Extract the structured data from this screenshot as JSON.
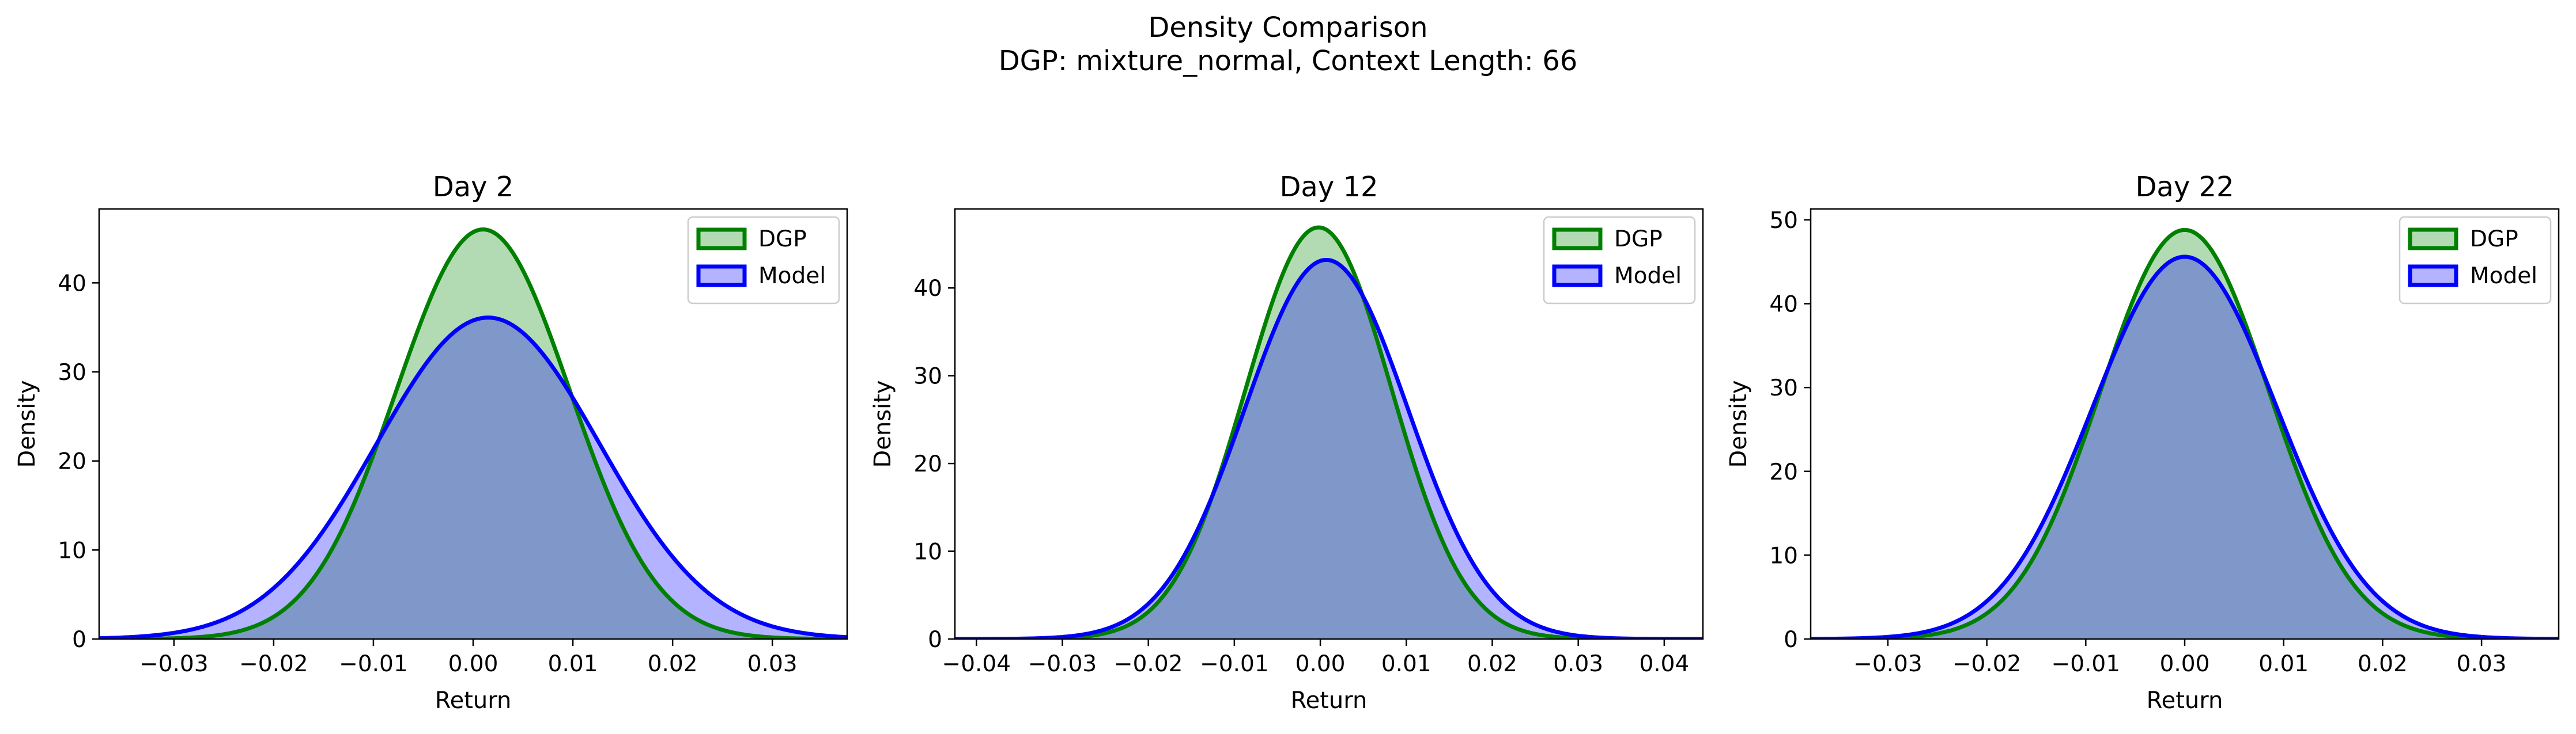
{
  "figure": {
    "title_line1": "Density Comparison",
    "title_line2": "DGP: mixture_normal, Context Length: 66"
  },
  "colors": {
    "dgp_line": "#008000",
    "dgp_fill": "#b3dbb3",
    "model_line": "#0000ff",
    "model_fill": "#b3b3ff",
    "overlap_fill": "#7f98c9"
  },
  "chart_data": [
    {
      "type": "area",
      "title": "Day 2",
      "xlabel": "Return",
      "ylabel": "Density",
      "xlim": [
        -0.0375,
        0.0375
      ],
      "ylim": [
        0,
        48.3
      ],
      "xticks": [
        -0.03,
        -0.02,
        -0.01,
        0.0,
        0.01,
        0.02,
        0.03
      ],
      "xtick_labels": [
        "−0.03",
        "−0.02",
        "−0.01",
        "0.00",
        "0.01",
        "0.02",
        "0.03"
      ],
      "yticks": [
        0,
        10,
        20,
        30,
        40
      ],
      "ytick_labels": [
        "0",
        "10",
        "20",
        "30",
        "40"
      ],
      "legend": "top-right",
      "series": [
        {
          "name": "DGP",
          "mean": 0.001,
          "sd": 0.0087,
          "peak": 46.0
        },
        {
          "name": "Model",
          "mean": 0.0015,
          "sd": 0.0112,
          "peak": 36.1
        }
      ]
    },
    {
      "type": "area",
      "title": "Day 12",
      "xlabel": "Return",
      "ylabel": "Density",
      "xlim": [
        -0.0425,
        0.0445
      ],
      "ylim": [
        0,
        49.0
      ],
      "xticks": [
        -0.04,
        -0.03,
        -0.02,
        -0.01,
        0.0,
        0.01,
        0.02,
        0.03,
        0.04
      ],
      "xtick_labels": [
        "−0.04",
        "−0.03",
        "−0.02",
        "−0.01",
        "0.00",
        "0.01",
        "0.02",
        "0.03",
        "0.04"
      ],
      "yticks": [
        0,
        10,
        20,
        30,
        40
      ],
      "ytick_labels": [
        "0",
        "10",
        "20",
        "30",
        "40"
      ],
      "legend": "top-right",
      "series": [
        {
          "name": "DGP",
          "mean": -0.0002,
          "sd": 0.0085,
          "peak": 46.9
        },
        {
          "name": "Model",
          "mean": 0.0007,
          "sd": 0.0095,
          "peak": 43.2
        }
      ]
    },
    {
      "type": "area",
      "title": "Day 22",
      "xlabel": "Return",
      "ylabel": "Density",
      "xlim": [
        -0.0378,
        0.0378
      ],
      "ylim": [
        0,
        51.3
      ],
      "xticks": [
        -0.03,
        -0.02,
        -0.01,
        0.0,
        0.01,
        0.02,
        0.03
      ],
      "xtick_labels": [
        "−0.03",
        "−0.02",
        "−0.01",
        "0.00",
        "0.01",
        "0.02",
        "0.03"
      ],
      "yticks": [
        0,
        10,
        20,
        30,
        40,
        50
      ],
      "ytick_labels": [
        "0",
        "10",
        "20",
        "30",
        "40",
        "50"
      ],
      "legend": "top-right",
      "series": [
        {
          "name": "DGP",
          "mean": 0.0,
          "sd": 0.0085,
          "peak": 48.8
        },
        {
          "name": "Model",
          "mean": 0.0,
          "sd": 0.0093,
          "peak": 45.6
        }
      ]
    }
  ]
}
